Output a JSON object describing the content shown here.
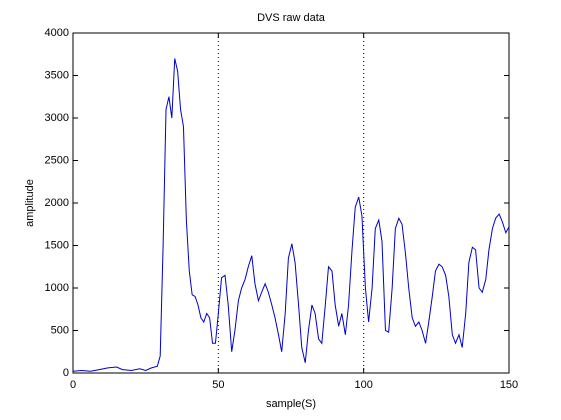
{
  "chart_data": {
    "type": "line",
    "title": "DVS raw data",
    "x_label": "sample(S)",
    "y_label": "amplitude",
    "xlim": [
      0,
      150
    ],
    "ylim": [
      0,
      4000
    ],
    "xticks": [
      0,
      50,
      100,
      150
    ],
    "yticks": [
      0,
      500,
      1000,
      1500,
      2000,
      2500,
      3000,
      3500,
      4000
    ],
    "grid": "x",
    "series": [
      {
        "name": "DVS raw data",
        "color": "#0000cc",
        "x": [
          0,
          3,
          6,
          9,
          12,
          15,
          17,
          20,
          23,
          25,
          27,
          29,
          30,
          31,
          32,
          33,
          34,
          35,
          36,
          37,
          38,
          39,
          40,
          41,
          42,
          43,
          44,
          45,
          46,
          47,
          48,
          49,
          50,
          51.1,
          52.3,
          53.4,
          54.6,
          55.7,
          56.9,
          58.0,
          59.2,
          60.3,
          61.5,
          62.6,
          63.8,
          64.9,
          66.1,
          67.2,
          68.4,
          69.5,
          70.7,
          71.8,
          73.0,
          74.1,
          75.3,
          76.4,
          77.6,
          78.7,
          79.9,
          81.0,
          82.2,
          83.3,
          84.5,
          85.6,
          86.8,
          87.9,
          89.1,
          90.2,
          91.4,
          92.5,
          93.7,
          94.8,
          96.0,
          97.1,
          98.3,
          99.4,
          100.6,
          101.7,
          102.9,
          104.0,
          105.2,
          106.3,
          107.5,
          108.6,
          109.8,
          110.9,
          112.1,
          113.2,
          114.4,
          115.5,
          116.7,
          117.8,
          119.0,
          120.1,
          121.3,
          122.4,
          123.6,
          124.7,
          125.9,
          127.0,
          128.2,
          129.3,
          130.5,
          131.6,
          132.8,
          133.9,
          135.1,
          136.2,
          137.4,
          138.5,
          139.7,
          140.8,
          142.0,
          143.1,
          144.3,
          145.4,
          146.6,
          147.7,
          148.9,
          150
        ],
        "values": [
          20,
          30,
          20,
          40,
          60,
          70,
          40,
          30,
          50,
          30,
          60,
          80,
          200,
          1500,
          3100,
          3250,
          3000,
          3700,
          3550,
          3100,
          2900,
          1800,
          1200,
          920,
          900,
          800,
          650,
          600,
          700,
          650,
          350,
          350,
          700,
          1120,
          1150,
          800,
          250,
          500,
          850,
          1000,
          1100,
          1250,
          1380,
          1050,
          850,
          950,
          1050,
          950,
          800,
          650,
          450,
          250,
          700,
          1350,
          1520,
          1300,
          800,
          300,
          120,
          500,
          800,
          700,
          400,
          350,
          800,
          1250,
          1200,
          800,
          550,
          700,
          450,
          800,
          1450,
          1950,
          2070,
          1850,
          1000,
          600,
          1000,
          1700,
          1800,
          1550,
          500,
          480,
          1000,
          1700,
          1820,
          1750,
          1400,
          1000,
          650,
          550,
          600,
          500,
          350,
          600,
          900,
          1200,
          1280,
          1250,
          1150,
          900,
          450,
          350,
          450,
          300,
          700,
          1300,
          1480,
          1450,
          1000,
          950,
          1100,
          1450,
          1700,
          1820,
          1870,
          1780,
          1650,
          1720
        ]
      }
    ]
  }
}
